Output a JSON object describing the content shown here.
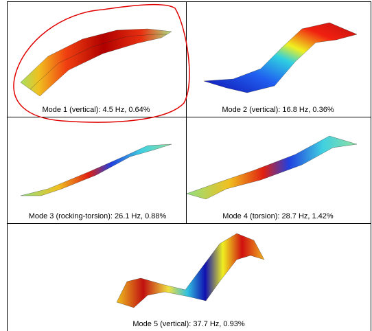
{
  "panels": [
    {
      "caption": "Mode 1 (vertical): 4.5 Hz, 0.64%"
    },
    {
      "caption": "Mode 2 (vertical): 16.8 Hz, 0.36%"
    },
    {
      "caption": "Mode 3 (rocking-torsion): 26.1 Hz, 0.88%"
    },
    {
      "caption": "Mode 4 (torsion): 28.7 Hz, 1.42%"
    },
    {
      "caption": "Mode 5 (vertical): 37.7 Hz, 0.93%"
    }
  ]
}
